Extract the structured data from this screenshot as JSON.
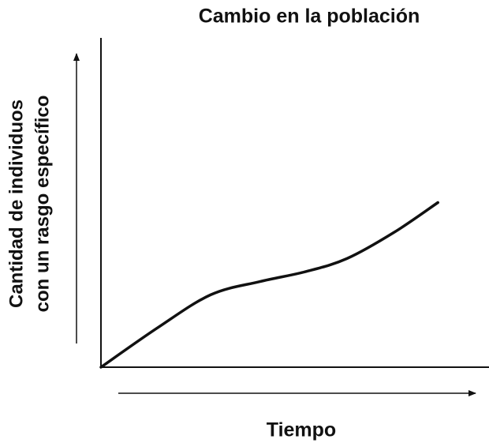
{
  "chart_data": {
    "type": "line",
    "title": "Cambio en la población",
    "x_label": "Tiempo",
    "y_label": [
      "Cantidad de individuos",
      "con un rasgo específico"
    ],
    "x": [
      0,
      1.5,
      2.9,
      4.2,
      5.4,
      6.5,
      7.75,
      8.9
    ],
    "values": [
      0,
      1.2,
      2.2,
      2.6,
      2.9,
      3.3,
      4.1,
      5.0
    ],
    "color": "#111111",
    "xlim": [
      0,
      10
    ],
    "ylim": [
      0,
      10
    ]
  }
}
